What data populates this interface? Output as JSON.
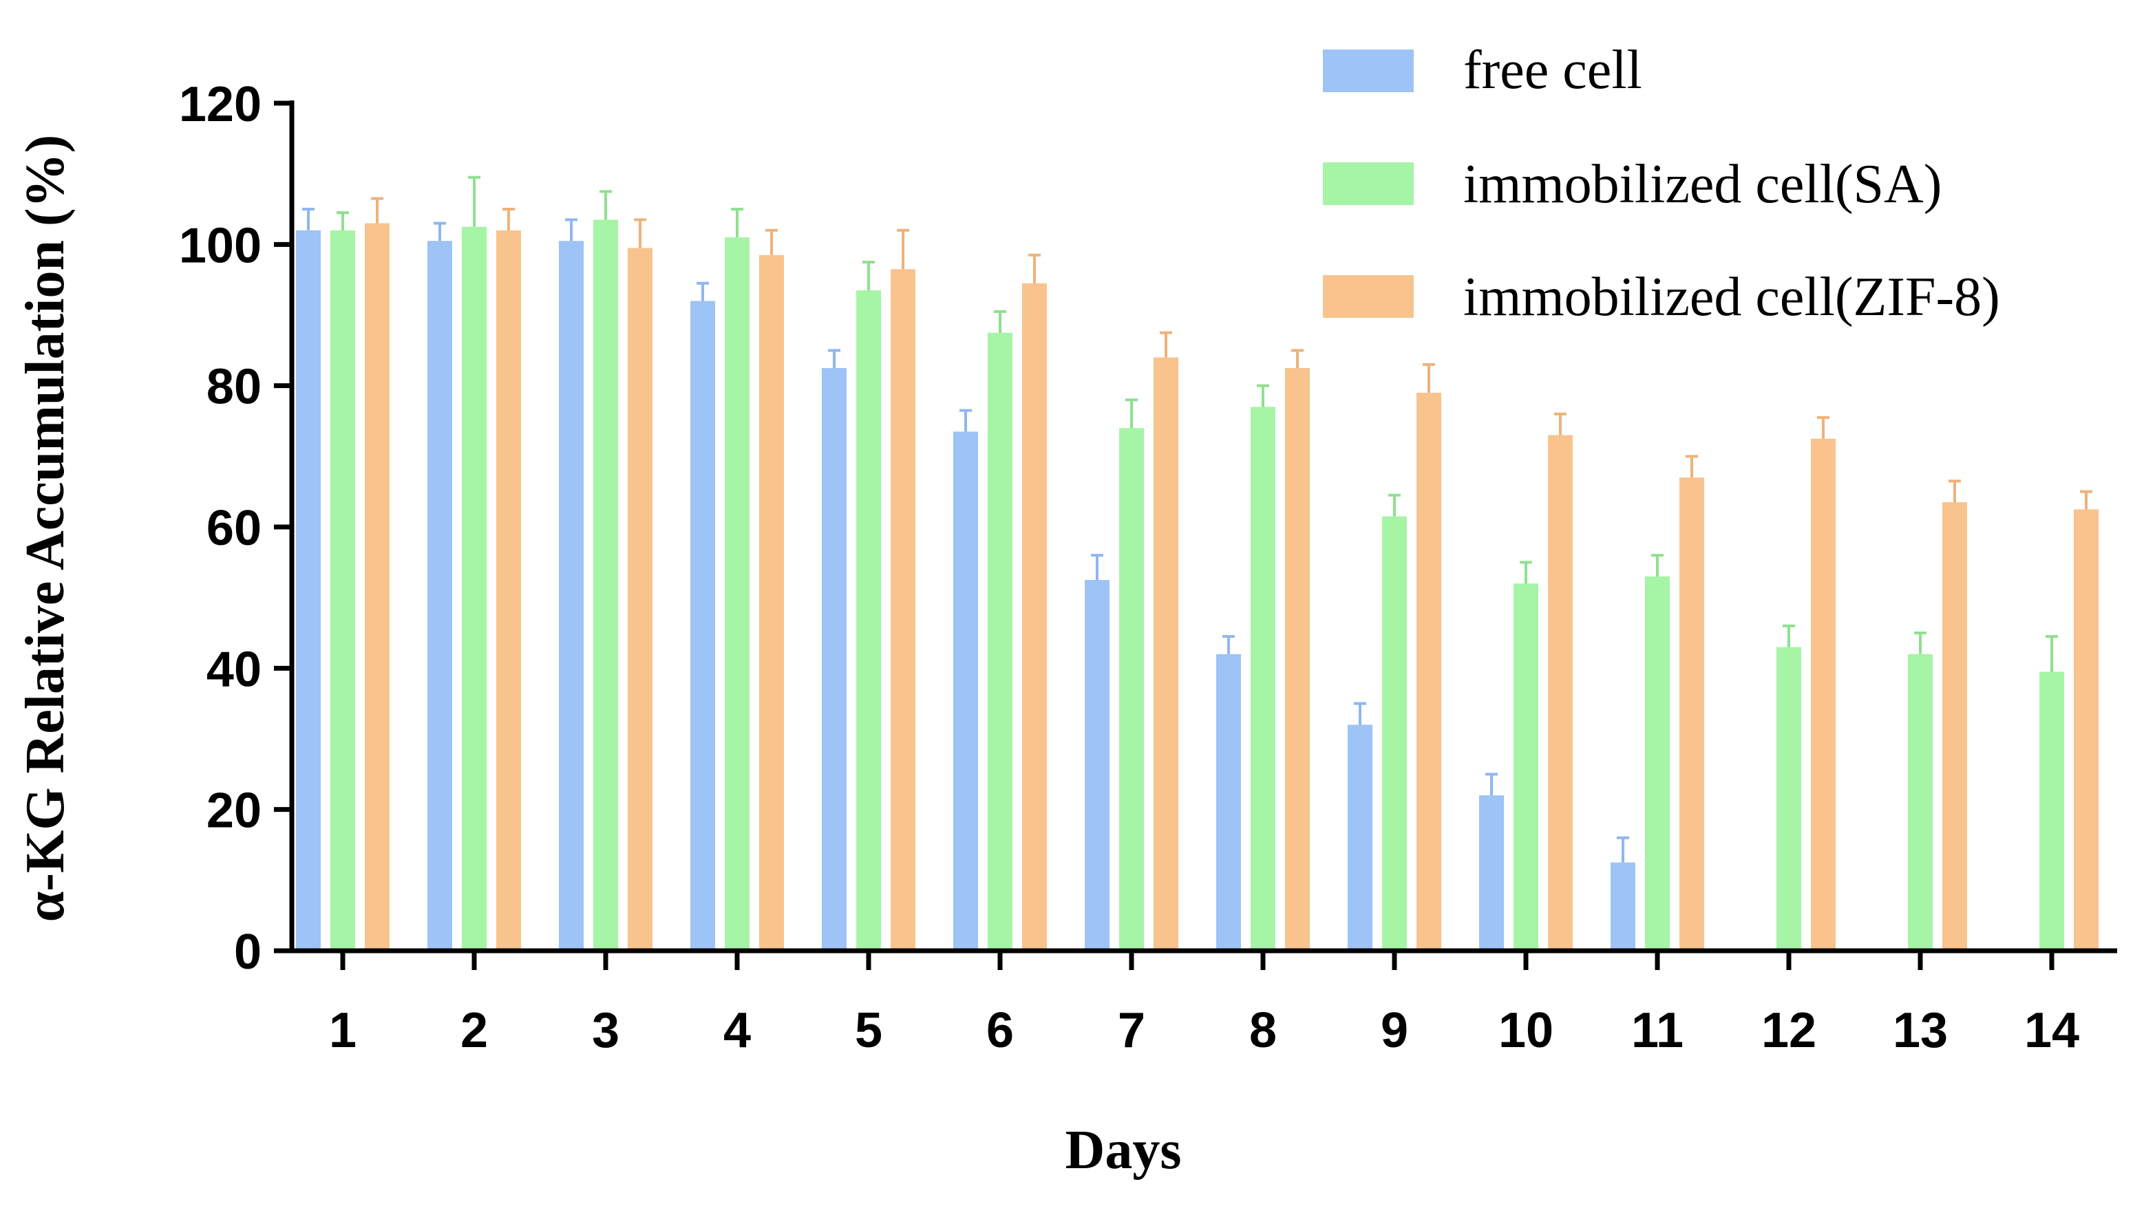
{
  "chart_data": {
    "type": "bar",
    "title": "",
    "xlabel": "Days",
    "ylabel": "α-KG Relative Accumulation (%)",
    "ylim": [
      0,
      120
    ],
    "yticks": [
      0,
      20,
      40,
      60,
      80,
      100,
      120
    ],
    "categories": [
      "1",
      "2",
      "3",
      "4",
      "5",
      "6",
      "7",
      "8",
      "9",
      "10",
      "11",
      "12",
      "13",
      "14"
    ],
    "legend_position": "top-right",
    "grid": false,
    "series": [
      {
        "name": "free cell",
        "color": "#9dc3f7",
        "values": [
          102,
          100.5,
          100.5,
          92,
          82.5,
          73.5,
          52.5,
          42,
          32,
          22,
          12.5,
          null,
          null,
          null
        ],
        "errors": [
          3,
          2.5,
          3,
          2.5,
          2.5,
          3,
          3.5,
          2.5,
          3,
          3,
          3.5,
          null,
          null,
          null
        ]
      },
      {
        "name": "immobilized cell(SA)",
        "color": "#a6f4a6",
        "values": [
          102,
          102.5,
          103.5,
          101,
          93.5,
          87.5,
          74,
          77,
          61.5,
          52,
          53,
          43,
          42,
          39.5
        ],
        "errors": [
          2.5,
          7,
          4,
          4,
          4,
          3,
          4,
          3,
          3,
          3,
          3,
          3,
          3,
          5
        ]
      },
      {
        "name": "immobilized cell(ZIF-8)",
        "color": "#f9c38d",
        "values": [
          103,
          102,
          99.5,
          98.5,
          96.5,
          94.5,
          84,
          82.5,
          79,
          73,
          67,
          72.5,
          63.5,
          62.5
        ],
        "errors": [
          3.5,
          3,
          4,
          3.5,
          5.5,
          4,
          3.5,
          2.5,
          4,
          3,
          3,
          3,
          3,
          2.5
        ]
      }
    ]
  }
}
